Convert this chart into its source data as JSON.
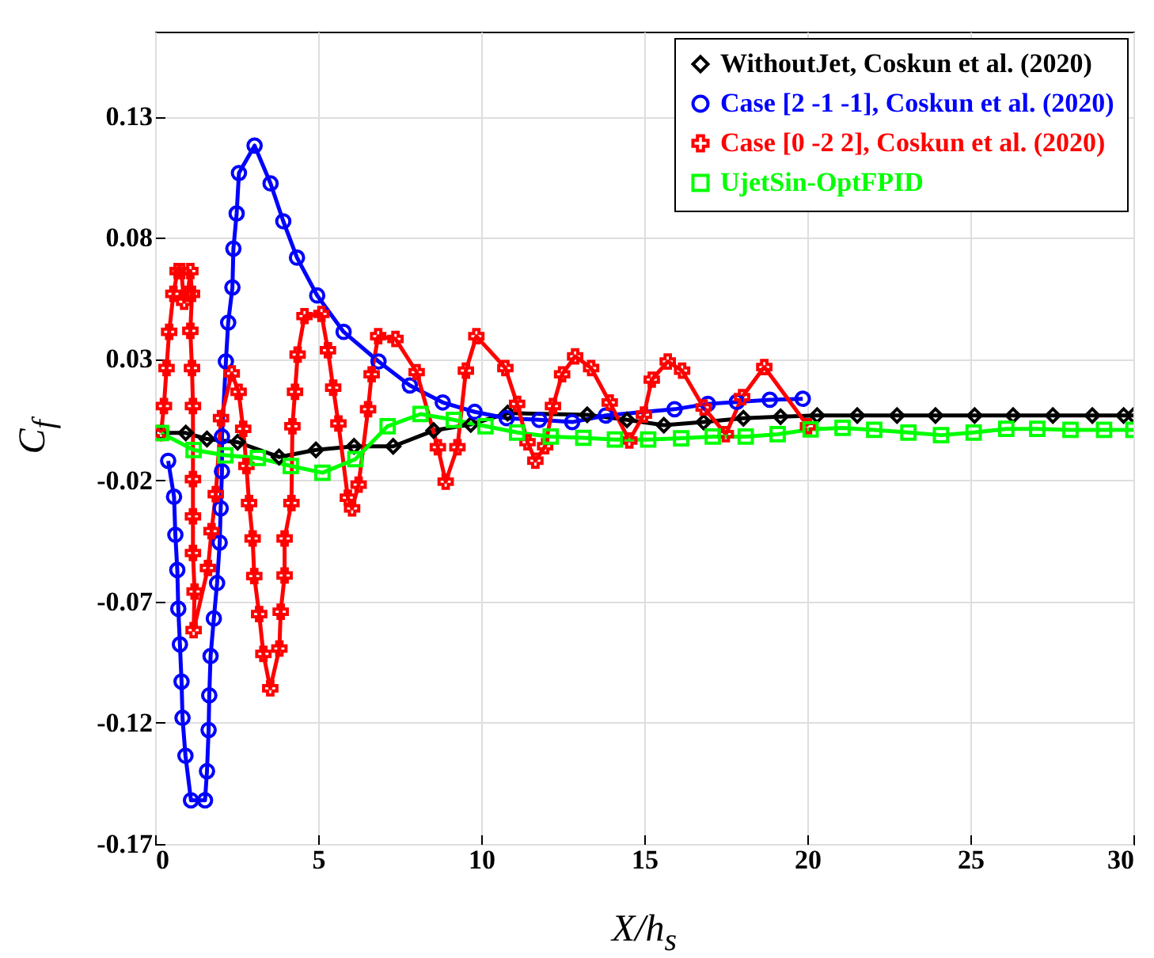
{
  "chart_data": {
    "type": "line",
    "xlabel": "X/h$_{s}$",
    "ylabel": "C$_{f}$",
    "xlim": [
      0,
      30
    ],
    "ylim": [
      -0.17,
      0.165
    ],
    "xticks": [
      0,
      5,
      10,
      15,
      20,
      25,
      30
    ],
    "yticks": [
      -0.17,
      -0.12,
      -0.07,
      -0.02,
      0.03,
      0.08,
      0.13
    ],
    "grid": true,
    "legend": "top right",
    "line_style": "solid",
    "series": [
      {
        "name": "WithoutJet, Coskun et al. (2020)",
        "color": "#000000",
        "marker": "diamond",
        "x": [
          0.18,
          0.94,
          1.59,
          2.53,
          3.8,
          4.93,
          6.1,
          7.3,
          8.54,
          9.68,
          10.81,
          13.25,
          14.47,
          15.6,
          16.82,
          18.04,
          19.18,
          20.3,
          21.53,
          22.75,
          23.93,
          25.13,
          26.31,
          27.53,
          28.74,
          29.7,
          30
        ],
        "values": [
          -0.0005,
          -0.0005,
          -0.003,
          -0.0043,
          -0.0104,
          -0.0075,
          -0.006,
          -0.006,
          0.0005,
          0.003,
          0.0077,
          0.007,
          0.0049,
          0.0027,
          0.004,
          0.0056,
          0.0062,
          0.0067,
          0.0067,
          0.0067,
          0.0067,
          0.0067,
          0.0067,
          0.0067,
          0.0067,
          0.0067,
          0.0067
        ]
      },
      {
        "name": "Case [2 -1 -1], Coskun et al. (2020)",
        "color": "#0000ff",
        "marker": "circle",
        "x": [
          0.4,
          0.58,
          0.62,
          0.68,
          0.71,
          0.76,
          0.81,
          0.84,
          0.93,
          1.1,
          1.53,
          1.59,
          1.64,
          1.66,
          1.7,
          1.8,
          1.9,
          1.98,
          2.01,
          2.05,
          2.05,
          2.17,
          2.24,
          2.37,
          2.4,
          2.5,
          2.57,
          3.05,
          3.54,
          3.93,
          4.35,
          4.97,
          5.78,
          6.85,
          7.81,
          8.82,
          9.8,
          10.78,
          11.78,
          12.79,
          13.82,
          15.93,
          16.95,
          17.84,
          18.85,
          19.86
        ],
        "values": [
          -0.012,
          -0.0268,
          -0.0425,
          -0.057,
          -0.073,
          -0.0877,
          -0.103,
          -0.118,
          -0.1336,
          -0.152,
          -0.152,
          -0.14,
          -0.123,
          -0.1087,
          -0.0925,
          -0.077,
          -0.0624,
          -0.0457,
          -0.0316,
          -0.0163,
          -0.002,
          0.029,
          0.045,
          0.0595,
          0.0755,
          0.09,
          0.1067,
          0.118,
          0.1024,
          0.0868,
          0.0718,
          0.0562,
          0.0412,
          0.029,
          0.0191,
          0.0121,
          0.0082,
          0.0056,
          0.0049,
          0.004,
          0.0067,
          0.0093,
          0.0115,
          0.0123,
          0.0132,
          0.0136
        ]
      },
      {
        "name": "Case [0 -2 2], Coskun et al. (2020)",
        "color": "#ff0000",
        "marker": "cross",
        "x": [
          0.18,
          0.27,
          0.35,
          0.43,
          0.56,
          0.69,
          0.8,
          0.89,
          1.0,
          1.08,
          1.13,
          1.08,
          1.13,
          1.16,
          1.16,
          1.16,
          1.16,
          1.21,
          1.18,
          1.62,
          1.73,
          1.86,
          2.02,
          2.35,
          2.56,
          2.7,
          2.8,
          2.88,
          2.99,
          3.04,
          3.19,
          3.32,
          3.53,
          3.81,
          3.85,
          3.97,
          3.97,
          4.18,
          4.21,
          4.29,
          4.37,
          4.58,
          5.1,
          5.3,
          5.46,
          5.62,
          5.91,
          6.04,
          6.24,
          6.53,
          6.64,
          6.84,
          7.37,
          8.02,
          8.67,
          8.91,
          9.27,
          9.53,
          9.85,
          10.74,
          11.1,
          11.42,
          11.66,
          11.96,
          12.2,
          12.48,
          12.88,
          13.37,
          13.94,
          14.54,
          14.99,
          15.23,
          15.72,
          16.16,
          16.82,
          17.5,
          18.0,
          18.68,
          20.02
        ],
        "values": [
          -0.0005,
          0.0106,
          0.0263,
          0.0412,
          0.0569,
          0.0663,
          0.0663,
          0.0536,
          0.0569,
          0.0663,
          0.0569,
          0.0416,
          0.0263,
          0.0106,
          -0.0195,
          -0.0349,
          -0.05,
          -0.0659,
          -0.0818,
          -0.0562,
          -0.041,
          -0.0257,
          0.0056,
          0.0241,
          0.0165,
          0.0012,
          -0.0141,
          -0.0294,
          -0.044,
          -0.0595,
          -0.0752,
          -0.0916,
          -0.1058,
          -0.0894,
          -0.0742,
          -0.0593,
          -0.044,
          -0.0294,
          0.0023,
          0.0165,
          0.0318,
          0.0477,
          0.0486,
          0.0336,
          0.0182,
          0.0034,
          -0.0272,
          -0.0316,
          -0.0218,
          0.0093,
          0.0237,
          0.0394,
          0.0383,
          0.0246,
          -0.0064,
          -0.0206,
          -0.0064,
          0.0252,
          0.0394,
          0.0263,
          0.0115,
          -0.0043,
          -0.0119,
          -0.006,
          0.0106,
          0.0237,
          0.0311,
          0.0263,
          0.0121,
          -0.0036,
          0.0071,
          0.0215,
          0.029,
          0.0252,
          0.01,
          -0.001,
          0.0143,
          0.0267,
          0.0023
        ]
      },
      {
        "name": "UjetSin-OptFPID",
        "color": "#00ff00",
        "marker": "square",
        "x": [
          0.18,
          1.18,
          2.15,
          3.15,
          4.16,
          5.13,
          6.14,
          7.13,
          8.14,
          9.16,
          10.13,
          11.1,
          12.13,
          13.13,
          14.1,
          15.12,
          16.13,
          17.1,
          18.11,
          19.09,
          20.1,
          21.08,
          22.05,
          23.1,
          24.1,
          25.1,
          26.1,
          27.05,
          28.07,
          29.1,
          30
        ],
        "values": [
          -0.0005,
          -0.0075,
          -0.0097,
          -0.0108,
          -0.0141,
          -0.0169,
          -0.0113,
          0.0023,
          0.0073,
          0.0049,
          0.0023,
          -0.0003,
          -0.002,
          -0.0025,
          -0.0032,
          -0.0032,
          -0.0027,
          -0.002,
          -0.002,
          -0.001,
          0.001,
          0.0016,
          0.0008,
          -0.0003,
          -0.0014,
          -0.0003,
          0.0012,
          0.0012,
          0.0008,
          0.0008,
          0.0008
        ]
      }
    ]
  }
}
